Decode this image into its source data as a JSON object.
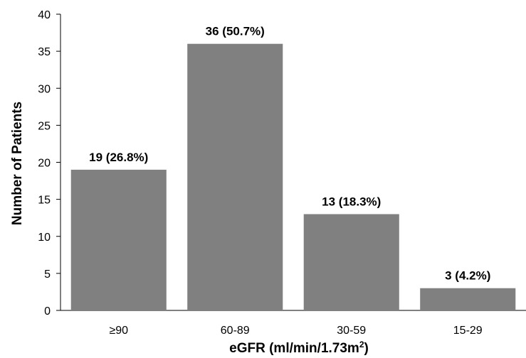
{
  "chart_data": {
    "type": "bar",
    "categories": [
      "≥90",
      "60-89",
      "30-59",
      "15-29"
    ],
    "values": [
      19,
      36,
      13,
      3
    ],
    "data_labels": [
      "19 (26.8%)",
      "36 (50.7%)",
      "13 (18.3%)",
      "3 (4.2%)"
    ],
    "title": "",
    "xlabel": "eGFR (ml/min/1.73m2)",
    "xlabel_main": "eGFR (ml/min/1.73m",
    "xlabel_sup": "2",
    "xlabel_end": ")",
    "ylabel": "Number of Patients",
    "ylim": [
      0,
      40
    ],
    "yticks": [
      0,
      5,
      10,
      15,
      20,
      25,
      30,
      35,
      40
    ],
    "bar_color": "#808080",
    "grid": false,
    "legend": "none"
  }
}
